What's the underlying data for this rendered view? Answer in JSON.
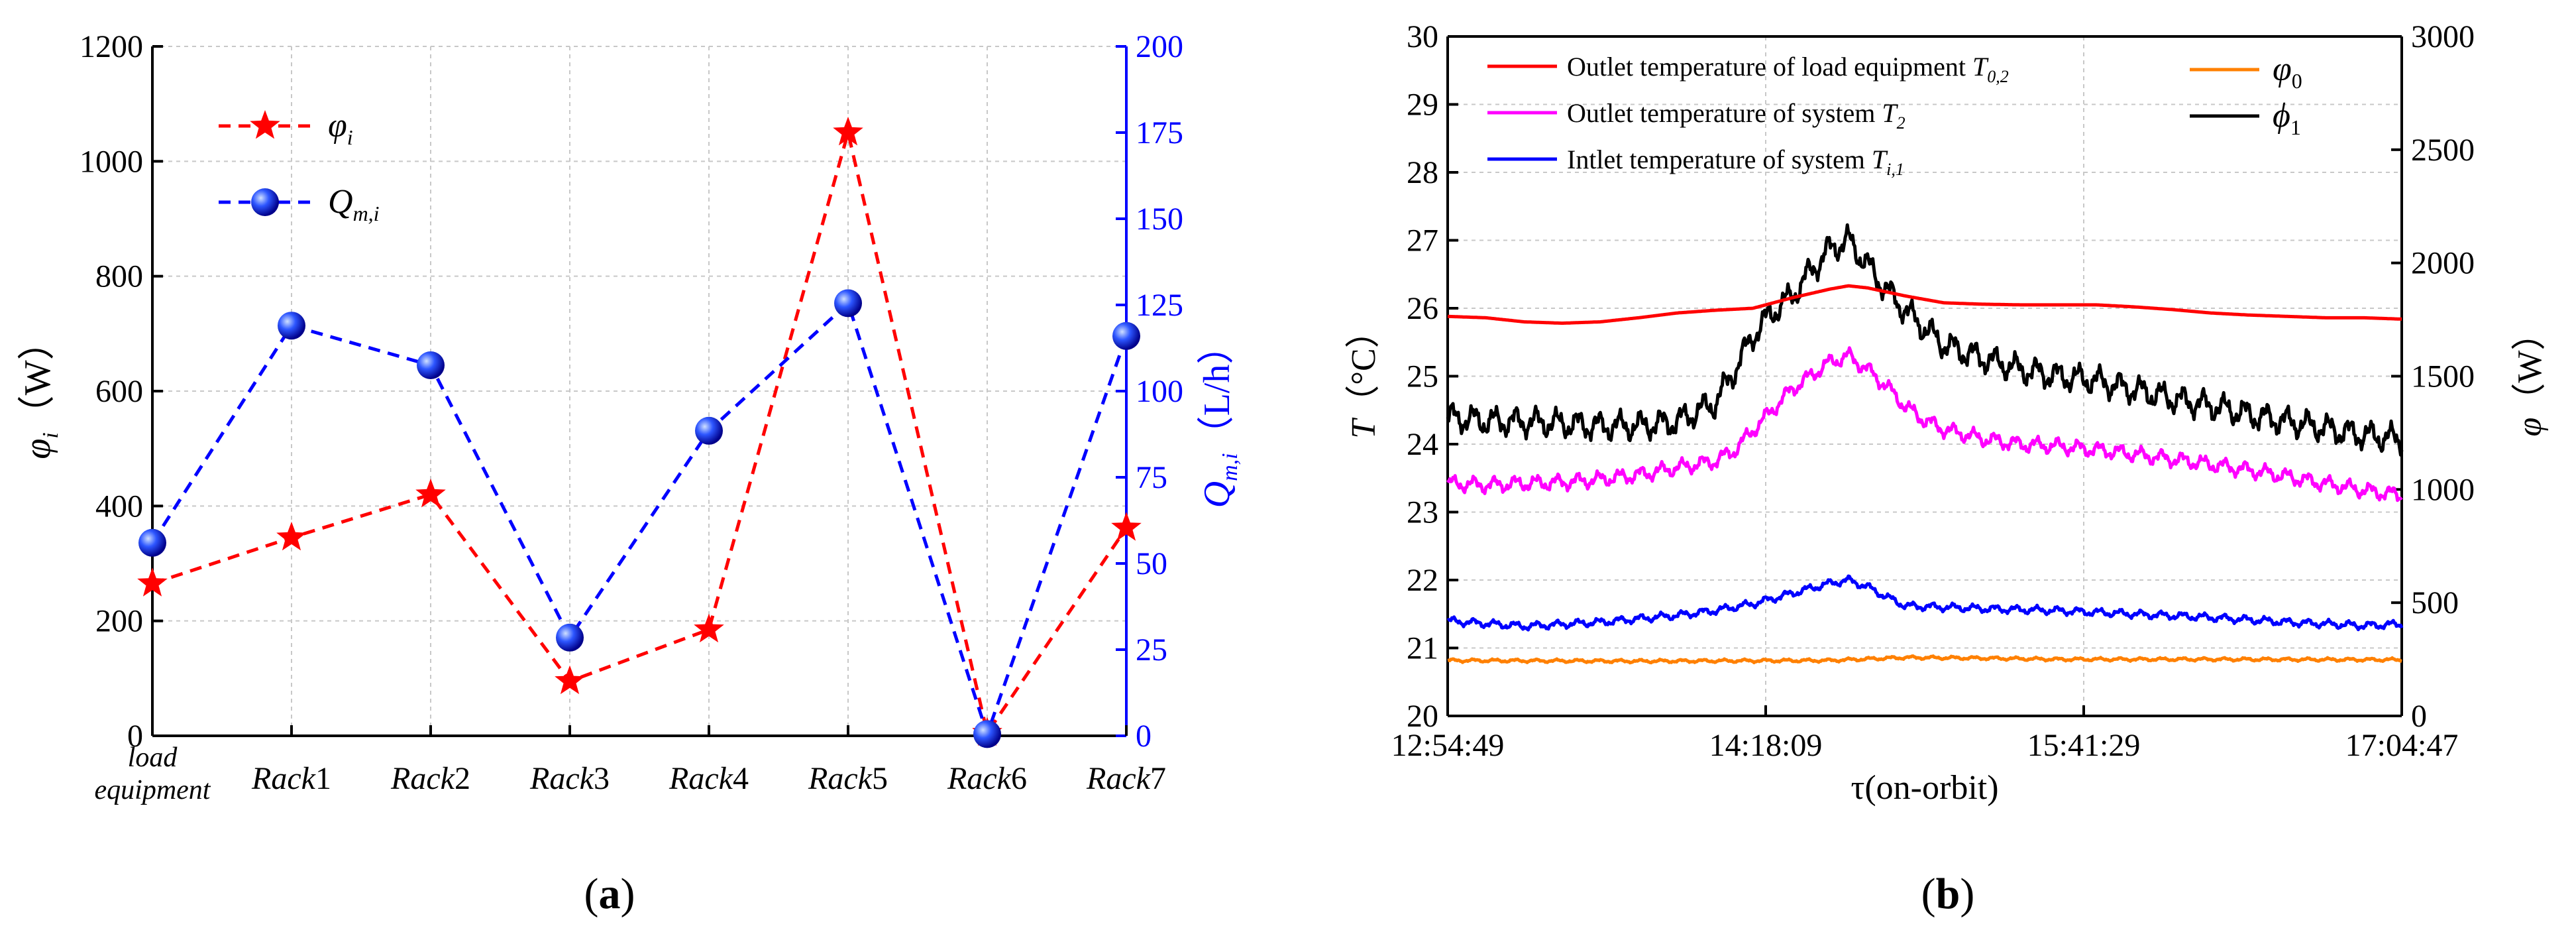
{
  "chart_data": [
    {
      "panel": "(a)",
      "panel_letter": "a",
      "type": "line",
      "categories": [
        "load equipment",
        "Rack1",
        "Rack2",
        "Rack3",
        "Rack4",
        "Rack5",
        "Rack6",
        "Rack7"
      ],
      "category_labels": [
        {
          "lines": [
            "load",
            "equipment"
          ]
        },
        {
          "name": "Rack",
          "num": "1"
        },
        {
          "name": "Rack",
          "num": "2"
        },
        {
          "name": "Rack",
          "num": "3"
        },
        {
          "name": "Rack",
          "num": "4"
        },
        {
          "name": "Rack",
          "num": "5"
        },
        {
          "name": "Rack",
          "num": "6"
        },
        {
          "name": "Rack",
          "num": "7"
        }
      ],
      "series": [
        {
          "name": "φi",
          "legend_main": "φ",
          "legend_sub": "i",
          "axis": "left",
          "color": "#ff0000",
          "marker": "star",
          "values": [
            265,
            345,
            420,
            95,
            185,
            1050,
            5,
            362
          ]
        },
        {
          "name": "Qm,i",
          "legend_main": "Q",
          "legend_sub": "m,i",
          "axis": "right",
          "color": "#0000ff",
          "marker": "sphere",
          "values": [
            56,
            119,
            107.5,
            28.5,
            88.5,
            125.5,
            0.5,
            116
          ]
        }
      ],
      "ylabel": {
        "main": "φ",
        "sub": "i",
        "unit": "（W）"
      },
      "y2label": {
        "main": "Q",
        "sub": "m,i",
        "unit": "（L/h）"
      },
      "ylim": [
        0,
        1200
      ],
      "yticks": [
        0,
        200,
        400,
        600,
        800,
        1000,
        1200
      ],
      "y2lim": [
        0,
        200
      ],
      "y2ticks": [
        0,
        25,
        50,
        75,
        100,
        125,
        150,
        175,
        200
      ],
      "grid": true,
      "legend_position": "top-left"
    },
    {
      "panel": "(b)",
      "panel_letter": "b",
      "type": "line",
      "x_ticks": [
        "12:54:49",
        "14:18:09",
        "15:41:29",
        "17:04:47"
      ],
      "x_range_minutes": [
        0,
        250
      ],
      "xlabel": "τ(on-orbit)",
      "ylabel": {
        "main": "T",
        "unit": "（°C）"
      },
      "y2label": {
        "main": "φ",
        "unit": "（W）"
      },
      "ylim": [
        20,
        30
      ],
      "yticks": [
        20,
        21,
        22,
        23,
        24,
        25,
        26,
        27,
        28,
        29,
        30
      ],
      "y2lim": [
        0,
        3000
      ],
      "y2ticks": [
        0,
        500,
        1000,
        1500,
        2000,
        2500,
        3000
      ],
      "grid": true,
      "legend_position": "top",
      "series": [
        {
          "name": "Outlet temperature of load equipment T0,2",
          "legend_text": "Outlet temperature of load equipment ",
          "legend_sym": "T",
          "legend_sub": "0,2",
          "axis": "left",
          "color": "#ff0000",
          "points": [
            [
              0,
              25.88
            ],
            [
              10,
              25.86
            ],
            [
              20,
              25.8
            ],
            [
              30,
              25.78
            ],
            [
              40,
              25.8
            ],
            [
              50,
              25.86
            ],
            [
              60,
              25.93
            ],
            [
              70,
              25.97
            ],
            [
              80,
              26.0
            ],
            [
              90,
              26.15
            ],
            [
              100,
              26.28
            ],
            [
              105,
              26.33
            ],
            [
              110,
              26.3
            ],
            [
              120,
              26.18
            ],
            [
              130,
              26.08
            ],
            [
              140,
              26.06
            ],
            [
              150,
              26.05
            ],
            [
              160,
              26.05
            ],
            [
              170,
              26.05
            ],
            [
              180,
              26.02
            ],
            [
              190,
              25.98
            ],
            [
              200,
              25.93
            ],
            [
              210,
              25.9
            ],
            [
              220,
              25.88
            ],
            [
              230,
              25.86
            ],
            [
              240,
              25.86
            ],
            [
              250,
              25.84
            ]
          ]
        },
        {
          "name": "Outlet temperature of system T2",
          "legend_text": "Outlet temperature of  system ",
          "legend_sym": "T",
          "legend_sub": "2",
          "axis": "left",
          "color": "#ff00ff",
          "points": [
            [
              0,
              23.42
            ],
            [
              10,
              23.4
            ],
            [
              20,
              23.42
            ],
            [
              30,
              23.44
            ],
            [
              40,
              23.48
            ],
            [
              50,
              23.55
            ],
            [
              60,
              23.65
            ],
            [
              70,
              23.75
            ],
            [
              75,
              23.9
            ],
            [
              80,
              24.2
            ],
            [
              85,
              24.5
            ],
            [
              90,
              24.8
            ],
            [
              95,
              25.0
            ],
            [
              100,
              25.2
            ],
            [
              105,
              25.3
            ],
            [
              110,
              25.1
            ],
            [
              115,
              24.85
            ],
            [
              120,
              24.55
            ],
            [
              125,
              24.35
            ],
            [
              130,
              24.22
            ],
            [
              140,
              24.08
            ],
            [
              150,
              24.0
            ],
            [
              160,
              23.97
            ],
            [
              170,
              23.92
            ],
            [
              180,
              23.85
            ],
            [
              190,
              23.78
            ],
            [
              200,
              23.7
            ],
            [
              210,
              23.62
            ],
            [
              220,
              23.52
            ],
            [
              230,
              23.42
            ],
            [
              240,
              23.32
            ],
            [
              250,
              23.25
            ]
          ],
          "wiggle": 0.1
        },
        {
          "name": "Intlet temperature of system Ti,1",
          "legend_text": "Intlet temperature of system ",
          "legend_sym": "T",
          "legend_sub": "i,1",
          "axis": "left",
          "color": "#0000ff",
          "points": [
            [
              0,
              21.4
            ],
            [
              20,
              21.32
            ],
            [
              40,
              21.38
            ],
            [
              60,
              21.48
            ],
            [
              70,
              21.55
            ],
            [
              80,
              21.65
            ],
            [
              90,
              21.8
            ],
            [
              100,
              21.95
            ],
            [
              105,
              22.0
            ],
            [
              110,
              21.9
            ],
            [
              115,
              21.75
            ],
            [
              120,
              21.62
            ],
            [
              140,
              21.58
            ],
            [
              160,
              21.55
            ],
            [
              180,
              21.5
            ],
            [
              200,
              21.45
            ],
            [
              220,
              21.38
            ],
            [
              240,
              21.33
            ],
            [
              250,
              21.35
            ]
          ],
          "wiggle": 0.05
        },
        {
          "name": "φ0",
          "legend_main": "φ",
          "legend_sub": "0",
          "axis": "right",
          "color": "#ff8000",
          "points": [
            [
              0,
              245
            ],
            [
              50,
              242
            ],
            [
              100,
              245
            ],
            [
              120,
              258
            ],
            [
              140,
              255
            ],
            [
              160,
              250
            ],
            [
              200,
              250
            ],
            [
              250,
              248
            ]
          ],
          "wiggle": 6
        },
        {
          "name": "φ1",
          "legend_main": "ϕ",
          "legend_sub": "1",
          "axis": "right",
          "color": "#000000",
          "points": [
            [
              0,
              1320
            ],
            [
              10,
              1300
            ],
            [
              20,
              1300
            ],
            [
              30,
              1290
            ],
            [
              40,
              1280
            ],
            [
              50,
              1280
            ],
            [
              60,
              1300
            ],
            [
              70,
              1380
            ],
            [
              75,
              1520
            ],
            [
              80,
              1680
            ],
            [
              85,
              1780
            ],
            [
              90,
              1850
            ],
            [
              95,
              1960
            ],
            [
              100,
              2060
            ],
            [
              105,
              2100
            ],
            [
              110,
              1990
            ],
            [
              115,
              1880
            ],
            [
              120,
              1790
            ],
            [
              125,
              1710
            ],
            [
              130,
              1640
            ],
            [
              140,
              1580
            ],
            [
              150,
              1530
            ],
            [
              160,
              1500
            ],
            [
              170,
              1480
            ],
            [
              180,
              1440
            ],
            [
              190,
              1400
            ],
            [
              200,
              1370
            ],
            [
              210,
              1330
            ],
            [
              220,
              1300
            ],
            [
              230,
              1270
            ],
            [
              240,
              1240
            ],
            [
              250,
              1220
            ]
          ],
          "wiggle": 55
        }
      ]
    }
  ]
}
